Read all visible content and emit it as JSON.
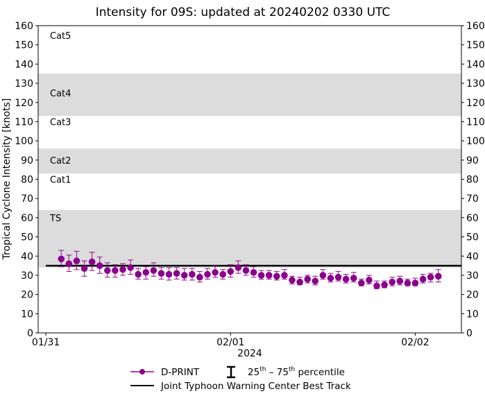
{
  "chart_data": {
    "type": "scatter",
    "title": "Intensity for 09S: updated at 20240202 0330 UTC",
    "ylabel": "Tropical Cyclone Intensity [knots]",
    "xlabel": "2024",
    "ylim": [
      0,
      160
    ],
    "yticks": [
      0,
      10,
      20,
      30,
      40,
      50,
      60,
      70,
      80,
      90,
      100,
      110,
      120,
      130,
      140,
      150,
      160
    ],
    "xticks": [
      {
        "label": "01/31",
        "date": "2024-01-31T00:00Z"
      },
      {
        "label": "02/01",
        "date": "2024-02-01T00:00Z"
      },
      {
        "label": "02/02",
        "date": "2024-02-02T00:00Z"
      }
    ],
    "xlim": [
      "2024-01-30T23:00Z",
      "2024-02-02T06:00Z"
    ],
    "categories": [
      {
        "label": "TS",
        "min": 34,
        "max": 64,
        "shaded": true,
        "label_at": 60
      },
      {
        "label": "Cat1",
        "min": 64,
        "max": 83,
        "shaded": false,
        "label_at": 80
      },
      {
        "label": "Cat2",
        "min": 83,
        "max": 96,
        "shaded": true,
        "label_at": 90
      },
      {
        "label": "Cat3",
        "min": 96,
        "max": 113,
        "shaded": false,
        "label_at": 110
      },
      {
        "label": "Cat4",
        "min": 113,
        "max": 135,
        "shaded": true,
        "label_at": 125
      },
      {
        "label": "Cat5",
        "min": 135,
        "max": 160,
        "shaded": false,
        "label_at": 155
      }
    ],
    "band_color": "#dcdcdc",
    "series": [
      {
        "name": "D-PRINT",
        "color": "#8b008b",
        "start": "2024-01-31T02:00Z",
        "interval_hours": 1,
        "values": [
          38.5,
          36,
          37.5,
          33.5,
          37,
          35,
          32.5,
          32.5,
          33,
          34,
          30.5,
          31.5,
          32.5,
          31,
          30.5,
          31,
          30,
          30.5,
          29,
          30.5,
          31.5,
          30.5,
          32,
          34,
          32.5,
          31.5,
          30,
          30,
          29.5,
          30,
          27.5,
          26.5,
          28,
          27,
          30,
          28.5,
          29,
          28,
          28.5,
          26,
          27.5,
          24.5,
          25,
          26.5,
          27,
          26,
          26,
          28,
          29,
          29.5
        ],
        "p25": [
          34.5,
          32,
          33,
          29.5,
          32.5,
          31,
          29,
          29,
          30,
          30.5,
          28,
          28,
          29.5,
          28,
          27.5,
          28,
          27.5,
          27.5,
          26.5,
          28,
          29,
          28,
          29,
          31,
          30,
          29,
          28,
          28,
          27.5,
          28,
          25.5,
          25,
          26,
          25,
          28,
          26.5,
          27,
          26,
          26.5,
          24.5,
          25.5,
          23,
          23.5,
          24.5,
          25,
          24.5,
          24.5,
          26,
          26.5,
          26.5
        ],
        "p75": [
          43,
          40.5,
          42.5,
          37.5,
          42,
          39.5,
          36.5,
          35.5,
          36,
          38,
          33.5,
          34.5,
          36.5,
          34,
          34,
          34,
          33.5,
          33.5,
          32,
          33.5,
          35,
          33,
          35.5,
          37.5,
          35.5,
          34.5,
          32.5,
          32.5,
          32,
          33,
          29.5,
          29,
          30,
          29.5,
          33,
          31,
          32,
          30.5,
          31.5,
          28,
          30,
          27,
          27,
          29,
          29.5,
          28,
          28.5,
          30.5,
          31,
          33
        ]
      },
      {
        "name": "Joint Typhoon Warning Center Best Track",
        "color": "#000000",
        "start": "2024-01-31T00:00Z",
        "end": "2024-02-02T06:00Z",
        "value": 35
      }
    ],
    "legend": {
      "placement": "bottom",
      "dprint": "D-PRINT",
      "percentile_prefix": "25",
      "percentile_sup1": "th",
      "percentile_mid": " – 75",
      "percentile_sup2": "th",
      "percentile_suffix": " percentile",
      "best_track": "Joint Typhoon Warning Center Best Track"
    }
  }
}
